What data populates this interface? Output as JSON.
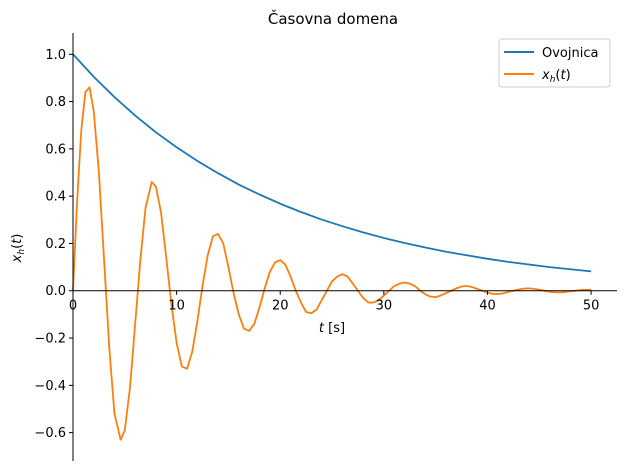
{
  "chart_data": {
    "type": "line",
    "title": "Časovna domena",
    "xlabel": "t [s]",
    "ylabel": "x_h(t)",
    "xlim": [
      0,
      52.5
    ],
    "ylim": [
      -0.72,
      1.09
    ],
    "xticks": [
      0,
      10,
      20,
      30,
      40,
      50
    ],
    "xtick_labels": [
      "0",
      "10",
      "20",
      "30",
      "40",
      "50"
    ],
    "yticks": [
      -0.6,
      -0.4,
      -0.2,
      0.0,
      0.2,
      0.4,
      0.6,
      0.8,
      1.0
    ],
    "ytick_labels": [
      "−0.6",
      "−0.4",
      "−0.2",
      "0.0",
      "0.2",
      "0.4",
      "0.6",
      "0.8",
      "1.0"
    ],
    "grid": false,
    "legend_position": "top-right",
    "series": [
      {
        "name": "Ovojnica",
        "color": "#1f77b4",
        "x": [
          0,
          2,
          4,
          6,
          8,
          10,
          12,
          14,
          16,
          18,
          20,
          22,
          24,
          26,
          28,
          30,
          32,
          34,
          36,
          38,
          40,
          42,
          44,
          46,
          48,
          50
        ],
        "y": [
          1.0,
          0.905,
          0.819,
          0.741,
          0.67,
          0.607,
          0.549,
          0.497,
          0.449,
          0.407,
          0.368,
          0.333,
          0.301,
          0.273,
          0.247,
          0.223,
          0.202,
          0.183,
          0.165,
          0.15,
          0.135,
          0.122,
          0.111,
          0.1,
          0.091,
          0.082
        ]
      },
      {
        "name": "x_h(t)",
        "color": "#ff7f0e",
        "x": [
          0,
          0.4,
          0.8,
          1.2,
          1.6,
          2.0,
          2.5,
          3.0,
          3.5,
          4.0,
          4.6,
          5.0,
          5.5,
          6.0,
          6.5,
          7.0,
          7.6,
          8.0,
          8.5,
          9.0,
          9.5,
          10.0,
          10.5,
          11.0,
          11.5,
          12.0,
          12.5,
          13.0,
          13.5,
          14.0,
          14.5,
          15.0,
          15.5,
          16.0,
          16.5,
          17.0,
          17.5,
          18.0,
          18.5,
          19.0,
          19.5,
          20.0,
          20.5,
          21.0,
          21.5,
          22.0,
          22.5,
          23.0,
          23.5,
          24.0,
          24.5,
          25.0,
          25.5,
          26.0,
          26.5,
          27.0,
          27.5,
          28.0,
          28.5,
          29.0,
          29.5,
          30.0,
          30.5,
          31.0,
          31.5,
          32.0,
          32.5,
          33.0,
          33.5,
          34.0,
          34.5,
          35.0,
          35.5,
          36.0,
          36.5,
          37.0,
          37.5,
          38.0,
          38.5,
          39.0,
          39.5,
          40.0,
          40.5,
          41.0,
          41.5,
          42.0,
          42.5,
          43.0,
          43.5,
          44.0,
          44.5,
          45.0,
          45.5,
          46.0,
          46.5,
          47.0,
          47.5,
          48.0,
          48.5,
          49.0,
          49.5,
          50.0
        ],
        "y": [
          0.0,
          0.38,
          0.68,
          0.84,
          0.86,
          0.76,
          0.5,
          0.13,
          -0.24,
          -0.52,
          -0.63,
          -0.59,
          -0.41,
          -0.14,
          0.13,
          0.35,
          0.46,
          0.44,
          0.33,
          0.14,
          -0.06,
          -0.22,
          -0.32,
          -0.33,
          -0.26,
          -0.13,
          0.02,
          0.15,
          0.23,
          0.24,
          0.2,
          0.1,
          -0.01,
          -0.1,
          -0.16,
          -0.17,
          -0.14,
          -0.07,
          0.01,
          0.08,
          0.12,
          0.13,
          0.11,
          0.06,
          0.0,
          -0.05,
          -0.09,
          -0.095,
          -0.08,
          -0.04,
          0.0,
          0.04,
          0.06,
          0.07,
          0.06,
          0.03,
          0.0,
          -0.03,
          -0.05,
          -0.05,
          -0.04,
          -0.02,
          0.0,
          0.02,
          0.03,
          0.035,
          0.03,
          0.02,
          0.0,
          -0.015,
          -0.025,
          -0.027,
          -0.02,
          -0.01,
          0.0,
          0.01,
          0.018,
          0.02,
          0.016,
          0.008,
          0.0,
          -0.008,
          -0.013,
          -0.014,
          -0.011,
          -0.005,
          0.0,
          0.005,
          0.009,
          0.01,
          0.008,
          0.004,
          0.0,
          -0.004,
          -0.007,
          -0.007,
          -0.005,
          -0.002,
          0.0,
          0.003,
          0.004,
          0.004
        ]
      }
    ]
  }
}
